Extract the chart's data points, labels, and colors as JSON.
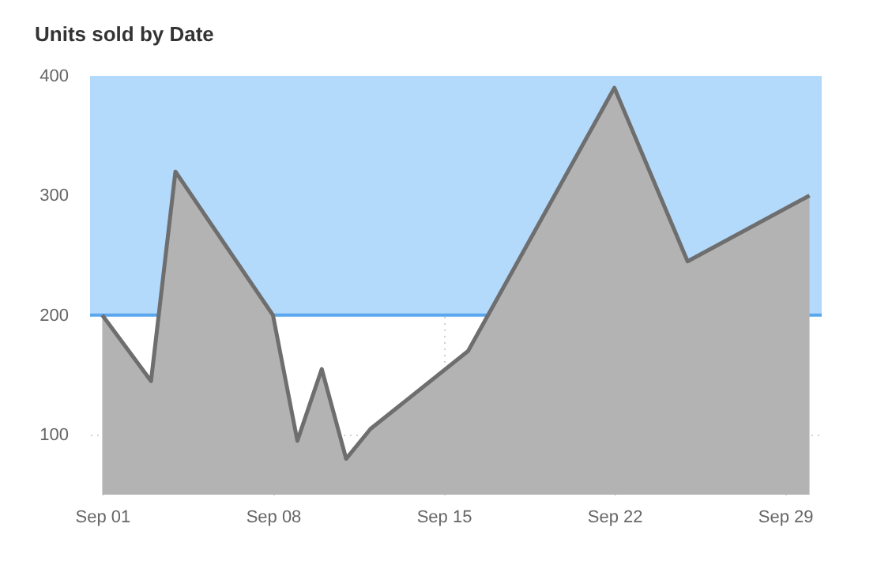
{
  "chart_data": {
    "type": "area",
    "title": "Units sold by Date",
    "x": [
      "--09-01",
      "--09-03",
      "--09-04",
      "--09-08",
      "--09-09",
      "--09-10",
      "--09-11",
      "--09-12",
      "--09-16",
      "--09-22",
      "--09-25",
      "--09-30"
    ],
    "series": [
      {
        "color": "#b3b3b3",
        "values": [
          200,
          145,
          320,
          200,
          95,
          155,
          80,
          105,
          170,
          390,
          245,
          300
        ]
      }
    ],
    "xlim": [
      "--08-31T12:00",
      "--09-30T12:00"
    ],
    "xticks": [
      {
        "value": "--09-01",
        "label": "Sep 01"
      },
      {
        "value": "--09-08",
        "label": "Sep 08"
      },
      {
        "value": "--09-15",
        "label": "Sep 15"
      },
      {
        "value": "--09-22",
        "label": "Sep 22"
      },
      {
        "value": "--09-29",
        "label": "Sep 29"
      }
    ],
    "ylim": [
      50,
      400
    ],
    "yticks": [
      100,
      200,
      300,
      400
    ],
    "bands": [
      {
        "axis": "y",
        "from": 200,
        "to": 400,
        "color": "#b3d9fb"
      }
    ],
    "ref_lines": [
      {
        "axis": "y",
        "value": 200,
        "color": "#5aa7ee",
        "line_style": "solid"
      }
    ],
    "grid": true,
    "line_style": "solid"
  }
}
